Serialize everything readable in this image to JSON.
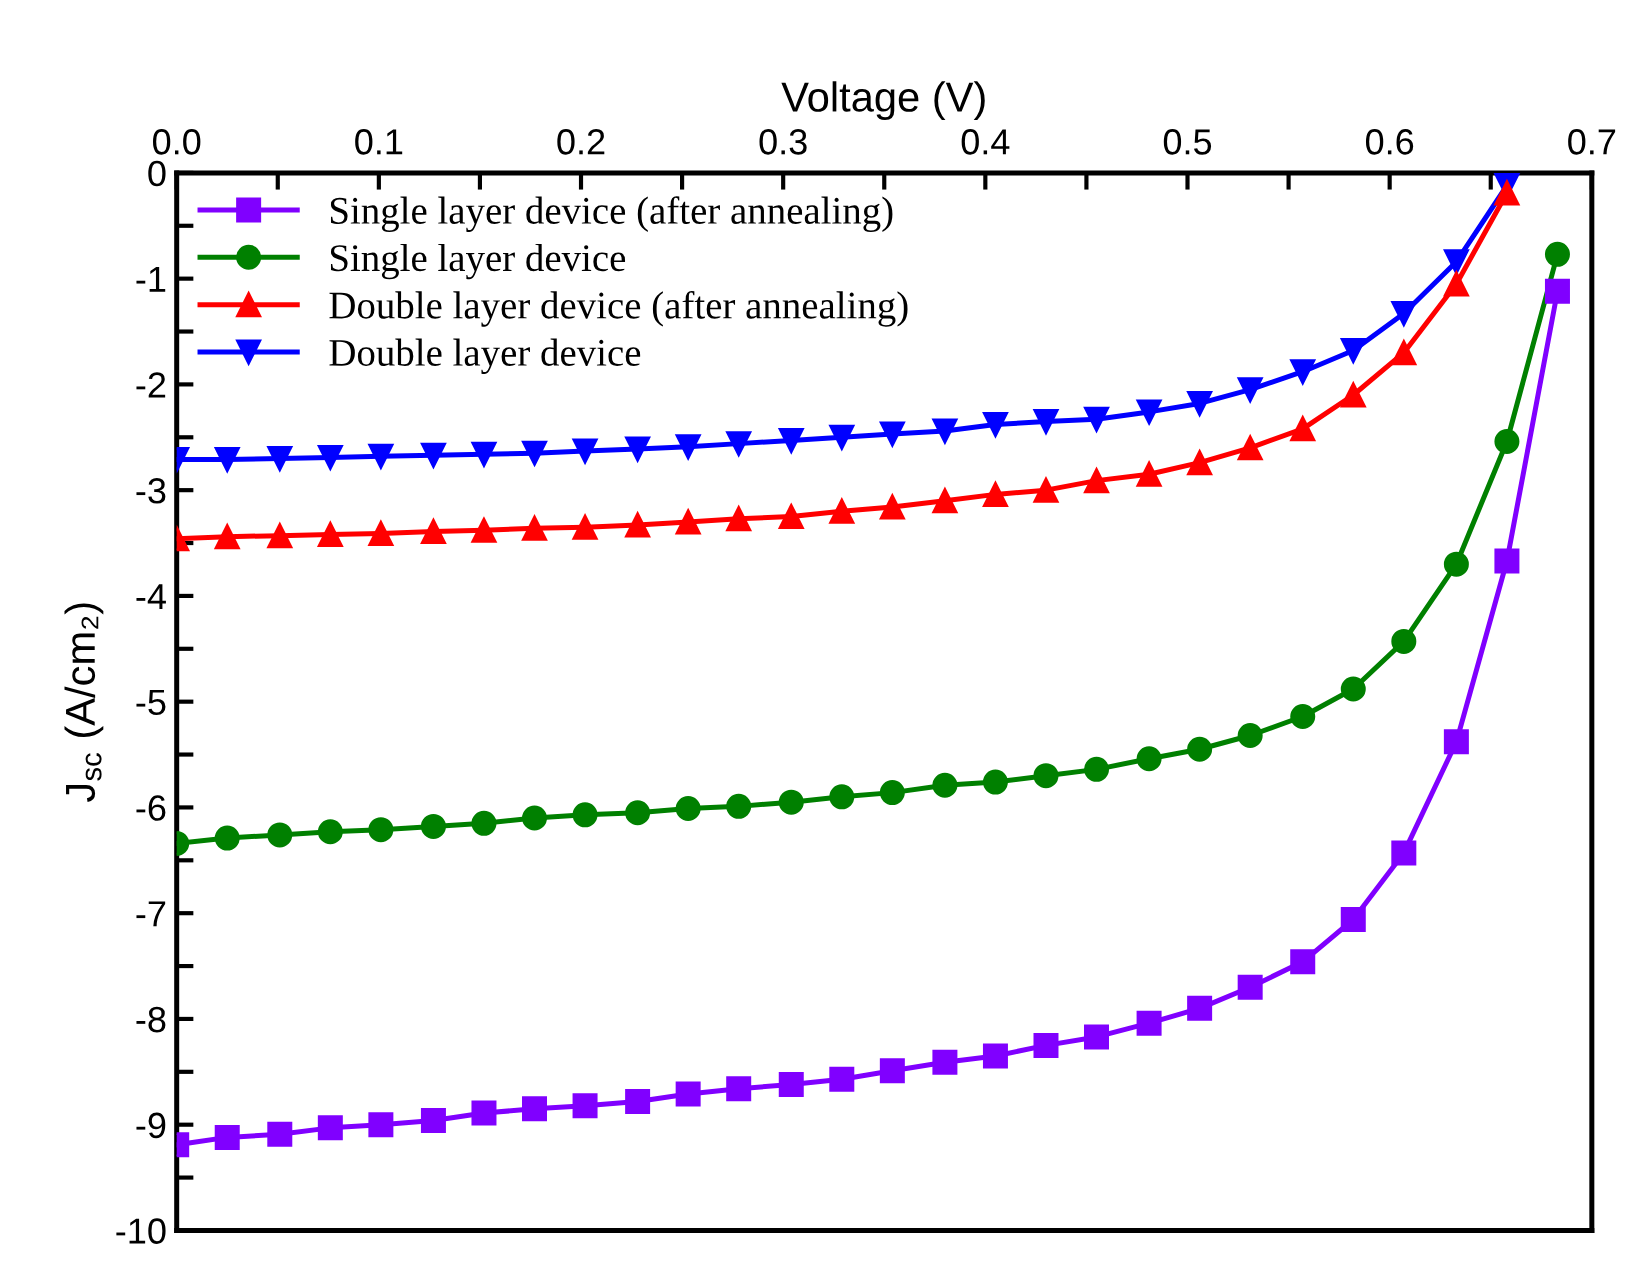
{
  "chart_data": {
    "type": "line",
    "xlabel": "Voltage (V)",
    "ylabel": "J$_{sc}$ (A/cm₂)",
    "x": [
      0,
      0.025,
      0.051,
      0.076,
      0.101,
      0.127,
      0.152,
      0.177,
      0.202,
      0.228,
      0.253,
      0.278,
      0.304,
      0.329,
      0.354,
      0.38,
      0.405,
      0.43,
      0.455,
      0.481,
      0.506,
      0.531,
      0.557,
      0.582,
      0.607,
      0.633,
      0.658,
      0.683
    ],
    "series": [
      {
        "name": "Single layer device (after annealing)",
        "color": "#8000ff",
        "marker": "square",
        "values": [
          -9.19,
          -9.12,
          -9.09,
          -9.03,
          -9.0,
          -8.96,
          -8.89,
          -8.85,
          -8.82,
          -8.78,
          -8.71,
          -8.66,
          -8.62,
          -8.57,
          -8.49,
          -8.41,
          -8.35,
          -8.25,
          -8.17,
          -8.04,
          -7.9,
          -7.7,
          -7.46,
          -7.06,
          -6.43,
          -5.38,
          -3.67,
          -1.12
        ]
      },
      {
        "name": "Single layer device",
        "color": "#008000",
        "marker": "circle",
        "values": [
          -6.34,
          -6.29,
          -6.26,
          -6.23,
          -6.21,
          -6.18,
          -6.15,
          -6.1,
          -6.07,
          -6.05,
          -6.01,
          -5.99,
          -5.95,
          -5.9,
          -5.86,
          -5.79,
          -5.76,
          -5.7,
          -5.64,
          -5.54,
          -5.45,
          -5.32,
          -5.14,
          -4.88,
          -4.43,
          -3.7,
          -2.54,
          -0.77
        ]
      },
      {
        "name": "Double layer device (after annealing)",
        "color": "#ff0000",
        "marker": "triangle",
        "values": [
          -3.46,
          -3.44,
          -3.43,
          -3.42,
          -3.41,
          -3.39,
          -3.38,
          -3.36,
          -3.35,
          -3.33,
          -3.3,
          -3.27,
          -3.25,
          -3.2,
          -3.16,
          -3.1,
          -3.04,
          -3.0,
          -2.91,
          -2.85,
          -2.74,
          -2.6,
          -2.42,
          -2.1,
          -1.7,
          -1.05,
          -0.19,
          null
        ]
      },
      {
        "name": "Double layer device",
        "color": "#0000ff",
        "marker": "triangle_down",
        "values": [
          -2.71,
          -2.71,
          -2.7,
          -2.69,
          -2.68,
          -2.67,
          -2.66,
          -2.65,
          -2.63,
          -2.61,
          -2.59,
          -2.56,
          -2.53,
          -2.5,
          -2.47,
          -2.44,
          -2.38,
          -2.35,
          -2.33,
          -2.26,
          -2.18,
          -2.05,
          -1.88,
          -1.68,
          -1.33,
          -0.84,
          -0.12,
          null
        ]
      }
    ],
    "xlim": [
      0,
      0.7
    ],
    "xticks": [
      {
        "value": 0,
        "label": "0.0"
      },
      {
        "value": 0.05,
        "label": null
      },
      {
        "value": 0.1,
        "label": "0.1"
      },
      {
        "value": 0.15,
        "label": null
      },
      {
        "value": 0.2,
        "label": "0.2"
      },
      {
        "value": 0.25,
        "label": null
      },
      {
        "value": 0.3,
        "label": "0.3"
      },
      {
        "value": 0.35,
        "label": null
      },
      {
        "value": 0.4,
        "label": "0.4"
      },
      {
        "value": 0.45,
        "label": null
      },
      {
        "value": 0.5,
        "label": "0.5"
      },
      {
        "value": 0.55,
        "label": null
      },
      {
        "value": 0.6,
        "label": "0.6"
      },
      {
        "value": 0.65,
        "label": null
      },
      {
        "value": 0.7,
        "label": "0.7"
      }
    ],
    "ylim": [
      -10,
      0
    ],
    "yticks": [
      -10,
      {
        "value": -9.5,
        "label": null
      },
      -9,
      {
        "value": -8.5,
        "label": null
      },
      -8,
      {
        "value": -7.5,
        "label": null
      },
      -7,
      {
        "value": -6.5,
        "label": null
      },
      -6,
      {
        "value": -5.5,
        "label": null
      },
      -5,
      {
        "value": -4.5,
        "label": null
      },
      -4,
      {
        "value": -3.5,
        "label": null
      },
      -3,
      {
        "value": -2.5,
        "label": null
      },
      -2,
      {
        "value": -1.5,
        "label": null
      },
      -1,
      {
        "value": -0.5,
        "label": null
      },
      0
    ],
    "legend": "top left",
    "grid": false,
    "line_style": "solid"
  }
}
